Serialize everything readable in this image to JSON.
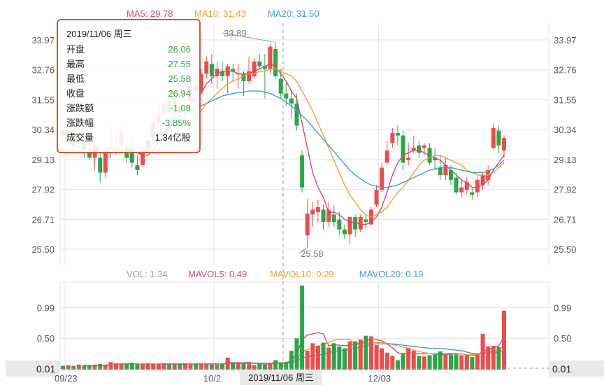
{
  "legend_main": [
    {
      "label": "MA5: 29.78",
      "color": "#d9456b"
    },
    {
      "label": "MA10: 31.43",
      "color": "#f39c2b"
    },
    {
      "label": "MA20: 31.50",
      "color": "#3b9fd6"
    }
  ],
  "legend_volume": [
    {
      "label": "VOL: 1.34",
      "color": "#999999"
    },
    {
      "label": "MAVOL5: 0.49",
      "color": "#d9456b"
    },
    {
      "label": "MAVOL10: 0.29",
      "color": "#f39c2b"
    },
    {
      "label": "MAVOL20: 0.19",
      "color": "#3b9fd6"
    }
  ],
  "tooltip": {
    "date": "2019/11/06 周三",
    "rows": [
      {
        "label": "开盘",
        "value": "26.06"
      },
      {
        "label": "最高",
        "value": "27.55"
      },
      {
        "label": "最低",
        "value": "25.58"
      },
      {
        "label": "收盘",
        "value": "26.94"
      },
      {
        "label": "涨跌额",
        "value": "-1.08"
      },
      {
        "label": "涨跌幅",
        "value": "-3.85%"
      },
      {
        "label": "成交量",
        "value": "1.34亿股"
      }
    ]
  },
  "crosshair": {
    "x_label": "2019/11/06 周三",
    "y_label_left": "0.01",
    "y_label_right": "0.01"
  },
  "markers": {
    "high": "33.89",
    "low": "25.58"
  },
  "colors": {
    "up": "#ef4b4b",
    "down": "#27a844",
    "grid": "#e4e4e4"
  },
  "chart_data": {
    "type": "candlestick",
    "price_axis": {
      "ticks": [
        25.5,
        26.71,
        27.92,
        29.13,
        30.34,
        31.55,
        32.76,
        33.97
      ],
      "tick_labels": [
        "25.50",
        "26.71",
        "27.92",
        "29.13",
        "30.34",
        "31.55",
        "32.76",
        "33.97"
      ],
      "ylim": [
        25.5,
        33.97
      ]
    },
    "volume_axis": {
      "ticks": [
        0.5,
        0.99
      ],
      "tick_labels": [
        "0.50",
        "0.99"
      ],
      "ylim": [
        0,
        1.34
      ]
    },
    "x_ticks": [
      {
        "index": 0,
        "label": "09/23"
      },
      {
        "index": 28,
        "label": "10/2"
      },
      {
        "index": 59,
        "label": "12/03"
      }
    ],
    "candles": [
      [
        30.3,
        30.5,
        29.8,
        30.1
      ],
      [
        30.1,
        30.6,
        29.7,
        30.3
      ],
      [
        30.3,
        30.5,
        29.5,
        29.7
      ],
      [
        29.9,
        30.4,
        29.6,
        30.2
      ],
      [
        29.8,
        30.0,
        29.2,
        29.5
      ],
      [
        29.6,
        30.0,
        29.1,
        29.2
      ],
      [
        29.2,
        29.9,
        28.7,
        29.7
      ],
      [
        29.2,
        29.5,
        28.2,
        28.6
      ],
      [
        28.6,
        29.6,
        28.4,
        29.4
      ],
      [
        29.5,
        30.5,
        29.2,
        29.6
      ],
      [
        29.6,
        30.1,
        29.3,
        29.6
      ],
      [
        29.7,
        30.5,
        29.5,
        30.2
      ],
      [
        29.6,
        29.9,
        29.0,
        29.2
      ],
      [
        29.6,
        29.9,
        28.8,
        29.0
      ],
      [
        28.9,
        29.3,
        28.5,
        28.7
      ],
      [
        28.9,
        29.6,
        28.8,
        29.5
      ],
      [
        29.5,
        30.1,
        29.4,
        29.9
      ],
      [
        30.0,
        30.8,
        29.9,
        30.6
      ],
      [
        30.6,
        31.4,
        30.4,
        30.9
      ],
      [
        31.0,
        31.6,
        30.8,
        31.4
      ],
      [
        31.5,
        31.8,
        30.9,
        31.1
      ],
      [
        31.2,
        32.0,
        31.0,
        31.7
      ],
      [
        31.3,
        31.8,
        30.7,
        31.0
      ],
      [
        31.2,
        31.6,
        30.8,
        31.3
      ],
      [
        31.5,
        32.3,
        31.4,
        32.1
      ],
      [
        32.1,
        32.6,
        31.7,
        31.9
      ],
      [
        31.9,
        32.8,
        31.8,
        32.6
      ],
      [
        32.6,
        33.3,
        32.4,
        33.1
      ],
      [
        33.0,
        33.4,
        32.2,
        32.5
      ],
      [
        32.5,
        33.1,
        32.0,
        32.8
      ],
      [
        32.7,
        33.1,
        32.3,
        32.5
      ],
      [
        32.5,
        33.0,
        31.8,
        32.9
      ],
      [
        32.8,
        33.0,
        32.3,
        32.7
      ],
      [
        32.6,
        33.0,
        32.0,
        32.6
      ],
      [
        32.6,
        32.7,
        31.7,
        32.3
      ],
      [
        32.3,
        33.3,
        32.2,
        32.7
      ],
      [
        32.5,
        33.2,
        32.4,
        33.1
      ],
      [
        33.1,
        33.4,
        32.8,
        32.9
      ],
      [
        32.9,
        33.4,
        31.6,
        32.8
      ],
      [
        32.8,
        33.8,
        32.6,
        33.7
      ],
      [
        33.6,
        33.89,
        32.4,
        32.5
      ],
      [
        32.4,
        32.8,
        31.6,
        31.8
      ],
      [
        31.8,
        32.3,
        31.3,
        31.6
      ],
      [
        31.6,
        31.9,
        30.8,
        31.4
      ],
      [
        31.4,
        31.8,
        30.3,
        30.5
      ],
      [
        29.3,
        29.5,
        27.8,
        28.0
      ],
      [
        26.06,
        27.55,
        25.58,
        26.94
      ],
      [
        26.9,
        27.4,
        26.4,
        27.1
      ],
      [
        27.0,
        27.5,
        26.6,
        27.2
      ],
      [
        27.1,
        27.3,
        26.3,
        26.6
      ],
      [
        26.6,
        27.4,
        26.4,
        27.1
      ],
      [
        26.9,
        27.3,
        26.4,
        26.6
      ],
      [
        26.7,
        27.0,
        26.1,
        26.3
      ],
      [
        26.3,
        26.5,
        25.9,
        26.1
      ],
      [
        26.1,
        26.8,
        25.7,
        26.8
      ],
      [
        26.8,
        26.9,
        26.0,
        26.3
      ],
      [
        26.3,
        26.9,
        26.2,
        26.8
      ],
      [
        26.7,
        26.9,
        26.3,
        26.6
      ],
      [
        26.5,
        27.2,
        26.5,
        27.1
      ],
      [
        27.3,
        28.1,
        27.2,
        27.9
      ],
      [
        27.9,
        29.0,
        27.8,
        28.8
      ],
      [
        29.0,
        29.9,
        28.9,
        29.5
      ],
      [
        29.8,
        30.4,
        29.6,
        30.2
      ],
      [
        30.2,
        30.5,
        29.7,
        30.1
      ],
      [
        30.1,
        30.3,
        28.7,
        29.0
      ],
      [
        29.1,
        29.8,
        28.9,
        29.2
      ],
      [
        29.5,
        30.1,
        29.4,
        29.6
      ],
      [
        29.7,
        29.9,
        29.2,
        29.4
      ],
      [
        29.6,
        29.8,
        29.3,
        29.7
      ],
      [
        29.6,
        29.8,
        28.9,
        29.0
      ],
      [
        29.2,
        29.6,
        28.7,
        29.1
      ],
      [
        28.8,
        29.3,
        28.3,
        28.5
      ],
      [
        28.5,
        29.2,
        28.3,
        28.9
      ],
      [
        28.7,
        28.9,
        28.1,
        28.3
      ],
      [
        28.4,
        28.6,
        27.7,
        27.8
      ],
      [
        27.8,
        28.3,
        27.6,
        28.0
      ],
      [
        27.9,
        28.4,
        27.7,
        28.2
      ],
      [
        27.8,
        28.0,
        27.5,
        27.7
      ],
      [
        27.8,
        28.4,
        27.6,
        28.3
      ],
      [
        28.1,
        28.6,
        27.9,
        28.5
      ],
      [
        28.3,
        28.9,
        28.1,
        28.7
      ],
      [
        29.6,
        30.6,
        29.5,
        30.4
      ],
      [
        30.3,
        30.5,
        29.4,
        29.7
      ],
      [
        29.5,
        30.1,
        29.2,
        30.0
      ]
    ],
    "volumes": [
      0.06,
      0.07,
      0.06,
      0.08,
      0.07,
      0.06,
      0.07,
      0.09,
      0.07,
      0.12,
      0.1,
      0.09,
      0.09,
      0.1,
      0.09,
      0.09,
      0.1,
      0.09,
      0.09,
      0.1,
      0.09,
      0.09,
      0.09,
      0.1,
      0.09,
      0.09,
      0.09,
      0.09,
      0.08,
      0.08,
      0.09,
      0.19,
      0.11,
      0.1,
      0.1,
      0.1,
      0.07,
      0.09,
      0.08,
      0.1,
      0.15,
      0.11,
      0.12,
      0.3,
      0.5,
      1.34,
      0.3,
      0.42,
      0.38,
      0.43,
      0.35,
      0.42,
      0.37,
      0.34,
      0.45,
      0.45,
      0.48,
      0.54,
      0.53,
      0.39,
      0.34,
      0.27,
      0.22,
      0.15,
      0.25,
      0.34,
      0.3,
      0.22,
      0.21,
      0.23,
      0.25,
      0.29,
      0.24,
      0.24,
      0.24,
      0.23,
      0.23,
      0.2,
      0.24,
      0.57,
      0.37,
      0.38,
      0.36,
      0.94
    ],
    "ma_lines": [
      {
        "name": "MA5",
        "color": "#d9456b",
        "values": [
          30.2,
          30.2,
          30.1,
          30.0,
          29.9,
          29.7,
          29.6,
          29.5,
          29.4,
          29.5,
          29.5,
          29.6,
          29.6,
          29.5,
          29.4,
          29.3,
          29.3,
          29.5,
          29.8,
          30.1,
          30.5,
          30.9,
          31.1,
          31.2,
          31.4,
          31.6,
          31.8,
          32.2,
          32.4,
          32.6,
          32.7,
          32.7,
          32.7,
          32.6,
          32.6,
          32.6,
          32.7,
          32.8,
          32.9,
          33.0,
          32.9,
          32.6,
          32.3,
          31.9,
          31.6,
          30.6,
          29.6,
          28.6,
          28.0,
          27.6,
          27.0,
          27.0,
          26.9,
          26.7,
          26.6,
          26.6,
          26.5,
          26.5,
          26.6,
          26.8,
          27.2,
          27.8,
          28.5,
          29.0,
          29.3,
          29.4,
          29.5,
          29.5,
          29.4,
          29.3,
          29.2,
          29.1,
          28.9,
          28.7,
          28.5,
          28.3,
          28.2,
          28.0,
          28.0,
          28.1,
          28.3,
          28.7,
          29.0,
          29.3
        ]
      },
      {
        "name": "MA10",
        "color": "#f39c2b",
        "values": [
          30.1,
          30.1,
          30.0,
          30.0,
          29.9,
          29.8,
          29.7,
          29.6,
          29.6,
          29.5,
          29.5,
          29.5,
          29.5,
          29.5,
          29.5,
          29.4,
          29.4,
          29.5,
          29.6,
          29.7,
          29.9,
          30.1,
          30.3,
          30.5,
          30.7,
          30.9,
          31.1,
          31.4,
          31.6,
          31.8,
          32.0,
          32.2,
          32.3,
          32.4,
          32.5,
          32.6,
          32.6,
          32.7,
          32.7,
          32.8,
          32.8,
          32.7,
          32.6,
          32.5,
          32.3,
          31.9,
          31.5,
          31.1,
          30.6,
          30.1,
          29.6,
          29.1,
          28.6,
          28.1,
          27.7,
          27.4,
          27.1,
          26.9,
          26.8,
          26.9,
          27.0,
          27.2,
          27.5,
          27.8,
          28.0,
          28.3,
          28.6,
          28.9,
          29.1,
          29.2,
          29.3,
          29.3,
          29.2,
          29.1,
          29.0,
          28.9,
          28.7,
          28.6,
          28.5,
          28.5,
          28.5,
          28.6,
          28.8,
          29.0
        ]
      },
      {
        "name": "MA20",
        "color": "#3b9fd6",
        "values": [
          null,
          null,
          null,
          null,
          null,
          null,
          null,
          null,
          null,
          null,
          null,
          null,
          null,
          null,
          null,
          null,
          null,
          null,
          null,
          30.6,
          30.7,
          30.8,
          30.9,
          31.0,
          31.1,
          31.2,
          31.3,
          31.4,
          31.5,
          31.6,
          31.7,
          31.75,
          31.8,
          31.85,
          31.85,
          31.9,
          31.9,
          31.9,
          31.85,
          31.8,
          31.7,
          31.6,
          31.45,
          31.3,
          31.1,
          30.9,
          30.7,
          30.45,
          30.2,
          29.95,
          29.7,
          29.45,
          29.2,
          28.95,
          28.7,
          28.5,
          28.35,
          28.2,
          28.1,
          28.05,
          28.0,
          28.0,
          28.05,
          28.1,
          28.2,
          28.3,
          28.4,
          28.5,
          28.6,
          28.7,
          28.75,
          28.8,
          28.8,
          28.8,
          28.75,
          28.7,
          28.65,
          28.6,
          28.6,
          28.6,
          28.65,
          28.75,
          28.9,
          29.1
        ]
      },
      {
        "name": "MAVOL5",
        "color": "#d9456b",
        "axis": "volume",
        "values": [
          null,
          null,
          null,
          null,
          0.07,
          0.07,
          0.07,
          0.07,
          0.07,
          0.08,
          0.09,
          0.09,
          0.09,
          0.1,
          0.09,
          0.09,
          0.09,
          0.09,
          0.09,
          0.09,
          0.09,
          0.09,
          0.09,
          0.09,
          0.09,
          0.09,
          0.09,
          0.09,
          0.09,
          0.09,
          0.09,
          0.11,
          0.11,
          0.11,
          0.11,
          0.12,
          0.1,
          0.09,
          0.09,
          0.09,
          0.1,
          0.11,
          0.11,
          0.15,
          0.24,
          0.48,
          0.55,
          0.57,
          0.59,
          0.57,
          0.38,
          0.4,
          0.39,
          0.38,
          0.39,
          0.41,
          0.42,
          0.45,
          0.49,
          0.48,
          0.46,
          0.41,
          0.35,
          0.27,
          0.25,
          0.27,
          0.26,
          0.25,
          0.26,
          0.26,
          0.24,
          0.24,
          0.24,
          0.25,
          0.25,
          0.25,
          0.24,
          0.23,
          0.23,
          0.29,
          0.32,
          0.35,
          0.38,
          0.52
        ]
      },
      {
        "name": "MAVOL10",
        "color": "#f39c2b",
        "axis": "volume",
        "values": [
          null,
          null,
          null,
          null,
          null,
          null,
          null,
          null,
          null,
          0.08,
          0.08,
          0.08,
          0.08,
          0.09,
          0.09,
          0.09,
          0.09,
          0.09,
          0.09,
          0.09,
          0.09,
          0.09,
          0.09,
          0.09,
          0.09,
          0.09,
          0.09,
          0.09,
          0.09,
          0.09,
          0.09,
          0.1,
          0.1,
          0.1,
          0.1,
          0.11,
          0.1,
          0.1,
          0.1,
          0.1,
          0.11,
          0.11,
          0.11,
          0.13,
          0.17,
          0.29,
          0.32,
          0.34,
          0.37,
          0.41,
          0.43,
          0.47,
          0.48,
          0.48,
          0.48,
          0.4,
          0.41,
          0.42,
          0.43,
          0.43,
          0.43,
          0.42,
          0.4,
          0.38,
          0.36,
          0.34,
          0.31,
          0.29,
          0.27,
          0.26,
          0.25,
          0.26,
          0.26,
          0.26,
          0.26,
          0.25,
          0.24,
          0.24,
          0.24,
          0.27,
          0.28,
          0.29,
          0.31,
          0.38
        ]
      },
      {
        "name": "MAVOL20",
        "color": "#3b9fd6",
        "axis": "volume",
        "values": [
          null,
          null,
          null,
          null,
          null,
          null,
          null,
          null,
          null,
          null,
          null,
          null,
          null,
          null,
          null,
          null,
          null,
          null,
          null,
          0.08,
          0.09,
          0.09,
          0.09,
          0.09,
          0.09,
          0.09,
          0.09,
          0.09,
          0.09,
          0.09,
          0.09,
          0.1,
          0.1,
          0.1,
          0.1,
          0.1,
          0.1,
          0.1,
          0.1,
          0.1,
          0.1,
          0.1,
          0.1,
          0.11,
          0.13,
          0.19,
          0.2,
          0.22,
          0.23,
          0.25,
          0.27,
          0.29,
          0.3,
          0.31,
          0.32,
          0.34,
          0.36,
          0.38,
          0.4,
          0.41,
          0.41,
          0.41,
          0.41,
          0.4,
          0.39,
          0.38,
          0.37,
          0.36,
          0.35,
          0.34,
          0.34,
          0.34,
          0.33,
          0.32,
          0.31,
          0.3,
          0.28,
          0.26,
          0.25,
          0.26,
          0.26,
          0.27,
          0.28,
          0.31
        ]
      }
    ]
  }
}
